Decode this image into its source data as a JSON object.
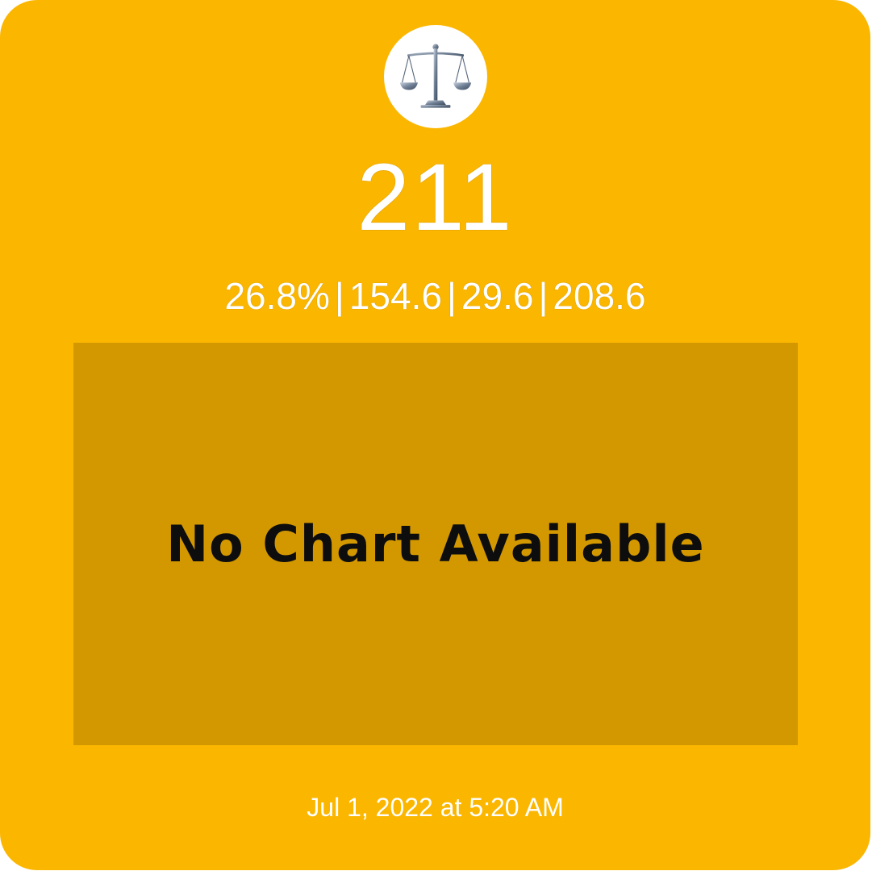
{
  "widget": {
    "icon": "balance-scale-icon",
    "background_color": "#FBB600",
    "chart_area_color": "#D39800",
    "main_value": "211",
    "stats": [
      "26.8%",
      "154.6",
      "29.6",
      "208.6"
    ],
    "stats_separator": "|",
    "chart_placeholder": "No Chart Available",
    "timestamp": "Jul 1, 2022 at 5:20 AM"
  }
}
